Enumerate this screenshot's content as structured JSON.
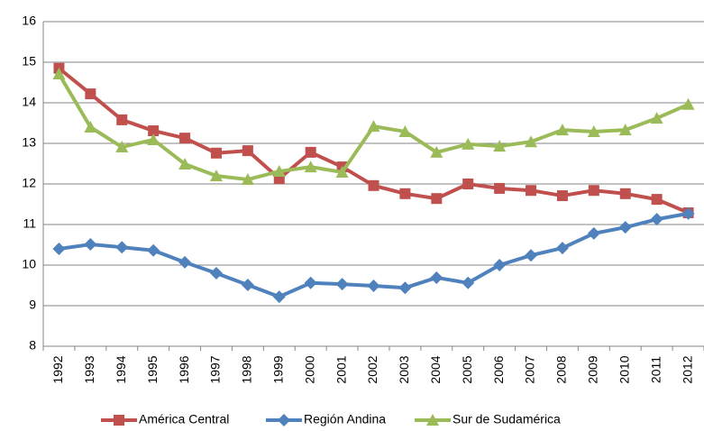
{
  "chart_data": {
    "type": "line",
    "categories": [
      "1992",
      "1993",
      "1994",
      "1995",
      "1996",
      "1997",
      "1998",
      "1999",
      "2000",
      "2001",
      "2002",
      "2003",
      "2004",
      "2005",
      "2006",
      "2007",
      "2008",
      "2009",
      "2010",
      "2011",
      "2012"
    ],
    "series": [
      {
        "name": "América Central",
        "color": "#c0504d",
        "marker": "square",
        "values": [
          14.85,
          14.22,
          13.58,
          13.31,
          13.13,
          12.76,
          12.82,
          12.13,
          12.78,
          12.42,
          11.96,
          11.76,
          11.64,
          12.0,
          11.89,
          11.84,
          11.71,
          11.84,
          11.76,
          11.62,
          11.29
        ]
      },
      {
        "name": "Región Andina",
        "color": "#4f81bd",
        "marker": "diamond",
        "values": [
          10.4,
          10.51,
          10.44,
          10.36,
          10.07,
          9.8,
          9.51,
          9.22,
          9.56,
          9.53,
          9.49,
          9.44,
          9.69,
          9.56,
          10.0,
          10.24,
          10.42,
          10.78,
          10.93,
          11.13,
          11.27
        ]
      },
      {
        "name": "Sur de Sudamérica",
        "color": "#9bbb59",
        "marker": "triangle",
        "values": [
          14.71,
          13.4,
          12.91,
          13.09,
          12.49,
          12.2,
          12.11,
          12.31,
          12.42,
          12.29,
          13.42,
          13.29,
          12.78,
          12.98,
          12.93,
          13.04,
          13.33,
          13.29,
          13.33,
          13.62,
          13.96
        ]
      }
    ],
    "ylim": [
      8,
      16
    ],
    "yticks": [
      8,
      9,
      10,
      11,
      12,
      13,
      14,
      15,
      16
    ],
    "grid": true,
    "legend": "bottom"
  }
}
